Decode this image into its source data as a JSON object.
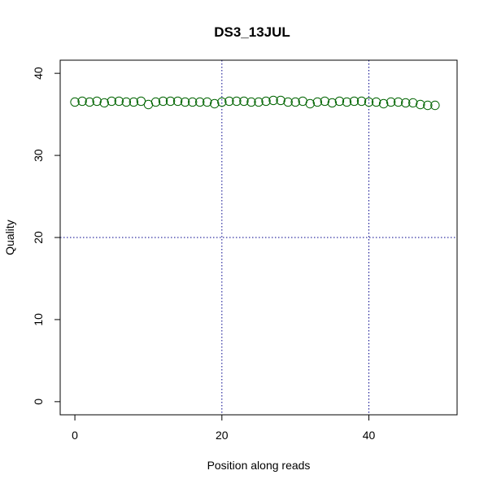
{
  "chart_data": {
    "type": "scatter",
    "title": "DS3_13JUL",
    "xlabel": "Position along reads",
    "ylabel": "Quality",
    "xlim": [
      -2,
      52
    ],
    "ylim": [
      -1.6,
      41.6
    ],
    "xticks": [
      0,
      20,
      40
    ],
    "yticks": [
      0,
      10,
      20,
      30,
      40
    ],
    "gridlines": {
      "x": [
        20,
        40
      ],
      "y": [
        20
      ]
    },
    "colors": {
      "points": "#006400",
      "gridlines": "#00008b",
      "axes": "#000000"
    },
    "series": [
      {
        "x": [
          0,
          1,
          2,
          3,
          4,
          5,
          6,
          7,
          8,
          9,
          10,
          11,
          12,
          13,
          14,
          15,
          16,
          17,
          18,
          19,
          20,
          21,
          22,
          23,
          24,
          25,
          26,
          27,
          28,
          29,
          30,
          31,
          32,
          33,
          34,
          35,
          36,
          37,
          38,
          39,
          40,
          41,
          42,
          43,
          44,
          45,
          46,
          47,
          48,
          49
        ],
        "y": [
          36.5,
          36.6,
          36.5,
          36.6,
          36.4,
          36.6,
          36.6,
          36.5,
          36.5,
          36.6,
          36.2,
          36.5,
          36.6,
          36.6,
          36.6,
          36.5,
          36.5,
          36.5,
          36.5,
          36.3,
          36.5,
          36.6,
          36.6,
          36.6,
          36.5,
          36.5,
          36.6,
          36.7,
          36.7,
          36.5,
          36.5,
          36.6,
          36.3,
          36.5,
          36.6,
          36.4,
          36.6,
          36.5,
          36.6,
          36.6,
          36.5,
          36.5,
          36.3,
          36.5,
          36.5,
          36.4,
          36.4,
          36.2,
          36.1,
          36.1
        ]
      }
    ]
  }
}
